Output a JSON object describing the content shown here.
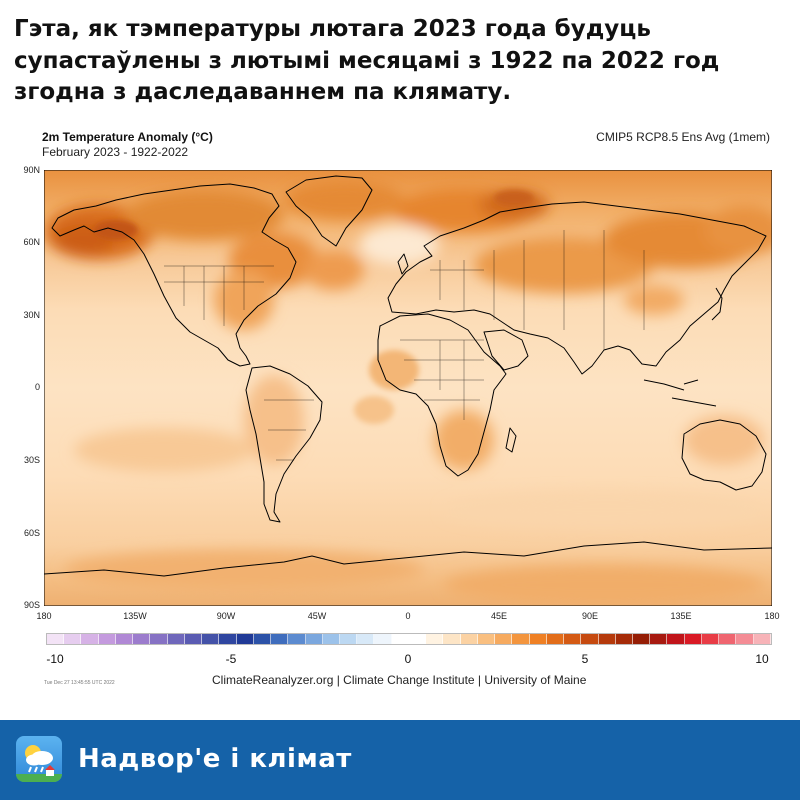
{
  "headline_lines": [
    "Гэта, як тэмпературы лютага 2023 года будуць",
    "супастаўлены з лютымі месяцамі з 1922 па 2022 год",
    " згодна з даследаваннем па клямату."
  ],
  "map": {
    "title": "2m Temperature Anomaly (°C)",
    "subtitle": "February 2023 - 1922-2022",
    "model": "CMIP5 RCP8.5 Ens Avg (1mem)",
    "lat_labels": [
      "90N",
      "60N",
      "30N",
      "0",
      "30S",
      "60S",
      "90S"
    ],
    "lon_labels": [
      "180",
      "135W",
      "90W",
      "45W",
      "0",
      "45E",
      "90E",
      "135E",
      "180"
    ],
    "colors": {
      "ocean_light": "#fde6c8",
      "mid": "#f6bb7c",
      "warm": "#eea055",
      "hot": "#d96e1c",
      "land_outline": "#000000"
    }
  },
  "colorbar": {
    "ticks": [
      "-10",
      "-5",
      "0",
      "5",
      "10"
    ],
    "range": [
      -10,
      10
    ],
    "colors": [
      "#f3e3f6",
      "#e6cdef",
      "#d6b2e6",
      "#c49ade",
      "#b088d5",
      "#9c7ccd",
      "#8672c4",
      "#6f67bb",
      "#5a5bb2",
      "#4452a8",
      "#2f46a0",
      "#203a97",
      "#2c52a8",
      "#3f6dbd",
      "#5c8bd0",
      "#7ba7de",
      "#9cc2ea",
      "#bcd8f2",
      "#d8e9f8",
      "#eef5fc",
      "#ffffff",
      "#ffffff",
      "#fff3e2",
      "#fde5c6",
      "#fbd2a3",
      "#f9bf80",
      "#f6aa5f",
      "#f3953e",
      "#ef8024",
      "#e26d1a",
      "#d45a14",
      "#c64a10",
      "#b53a0c",
      "#a52b08",
      "#951d05",
      "#a71a10",
      "#c0141a",
      "#d91a25",
      "#e83c46",
      "#ef6570",
      "#f48c95",
      "#f7b3b8"
    ]
  },
  "footer": {
    "credit": "ClimateReanalyzer.org | Climate Change Institute | University of Maine",
    "timestamp": "Tue Dec 27 13:45:55 UTC 2022",
    "brand": "Надвор'е і клімат",
    "logo_icon": "weather-app-icon"
  }
}
